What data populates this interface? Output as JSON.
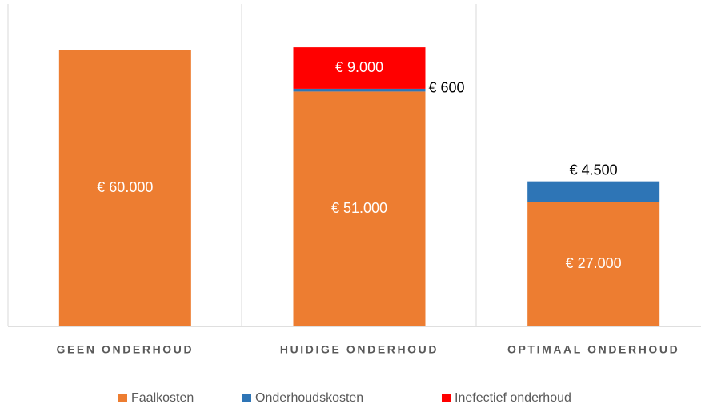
{
  "chart_data": {
    "type": "stacked_bar",
    "categories": [
      "GEEN ONDERHOUD",
      "HUIDIGE ONDERHOUD",
      "OPTIMAAL ONDERHOUD"
    ],
    "series": [
      {
        "name": "Faalkosten",
        "color": "#ED7D31",
        "values": [
          60000,
          51000,
          27000
        ],
        "value_labels": [
          "€ 60.000",
          "€ 51.000",
          "€ 27.000"
        ]
      },
      {
        "name": "Onderhoudskosten",
        "color": "#2E75B6",
        "values": [
          null,
          600,
          4500
        ],
        "value_labels": [
          null,
          "€ 600",
          "€ 4.500"
        ]
      },
      {
        "name": "Inefectief onderhoud",
        "color": "#FF0000",
        "values": [
          null,
          9000,
          null
        ],
        "value_labels": [
          null,
          "€ 9.000",
          null
        ]
      }
    ],
    "ylim": [
      0,
      70000
    ],
    "legend": "bottom"
  }
}
